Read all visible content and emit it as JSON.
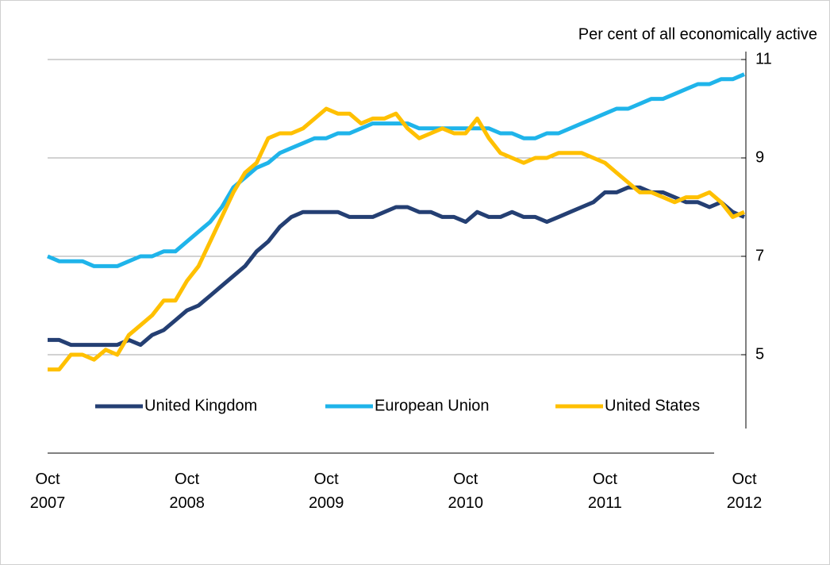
{
  "chart_data": {
    "type": "line",
    "annotation": "Per cent of all economically active",
    "categories": [
      "Oct 2007",
      null,
      null,
      null,
      null,
      null,
      null,
      null,
      null,
      null,
      null,
      null,
      "Oct 2008",
      null,
      null,
      null,
      null,
      null,
      null,
      null,
      null,
      null,
      null,
      null,
      "Oct 2009",
      null,
      null,
      null,
      null,
      null,
      null,
      null,
      null,
      null,
      null,
      null,
      "Oct 2010",
      null,
      null,
      null,
      null,
      null,
      null,
      null,
      null,
      null,
      null,
      null,
      "Oct 2011",
      null,
      null,
      null,
      null,
      null,
      null,
      null,
      null,
      null,
      null,
      null,
      "Oct 2012"
    ],
    "series": [
      {
        "name": "United Kingdom",
        "color": "#243f73",
        "values": [
          5.3,
          5.3,
          5.2,
          5.2,
          5.2,
          5.2,
          5.2,
          5.3,
          5.2,
          5.4,
          5.5,
          5.7,
          5.9,
          6.0,
          6.2,
          6.4,
          6.6,
          6.8,
          7.1,
          7.3,
          7.6,
          7.8,
          7.9,
          7.9,
          7.9,
          7.9,
          7.8,
          7.8,
          7.8,
          7.9,
          8.0,
          8.0,
          7.9,
          7.9,
          7.8,
          7.8,
          7.7,
          7.9,
          7.8,
          7.8,
          7.9,
          7.8,
          7.8,
          7.7,
          7.8,
          7.9,
          8.0,
          8.1,
          8.3,
          8.3,
          8.4,
          8.4,
          8.3,
          8.3,
          8.2,
          8.1,
          8.1,
          8.0,
          8.1,
          7.9,
          7.8
        ]
      },
      {
        "name": "European Union",
        "color": "#1fb4ea",
        "values": [
          7.0,
          6.9,
          6.9,
          6.9,
          6.8,
          6.8,
          6.8,
          6.9,
          7.0,
          7.0,
          7.1,
          7.1,
          7.3,
          7.5,
          7.7,
          8.0,
          8.4,
          8.6,
          8.8,
          8.9,
          9.1,
          9.2,
          9.3,
          9.4,
          9.4,
          9.5,
          9.5,
          9.6,
          9.7,
          9.7,
          9.7,
          9.7,
          9.6,
          9.6,
          9.6,
          9.6,
          9.6,
          9.6,
          9.6,
          9.5,
          9.5,
          9.4,
          9.4,
          9.5,
          9.5,
          9.6,
          9.7,
          9.8,
          9.9,
          10.0,
          10.0,
          10.1,
          10.2,
          10.2,
          10.3,
          10.4,
          10.5,
          10.5,
          10.6,
          10.6,
          10.7
        ]
      },
      {
        "name": "United States",
        "color": "#ffc000",
        "values": [
          4.7,
          4.7,
          5.0,
          5.0,
          4.9,
          5.1,
          5.0,
          5.4,
          5.6,
          5.8,
          6.1,
          6.1,
          6.5,
          6.8,
          7.3,
          7.8,
          8.3,
          8.7,
          8.9,
          9.4,
          9.5,
          9.5,
          9.6,
          9.8,
          10.0,
          9.9,
          9.9,
          9.7,
          9.8,
          9.8,
          9.9,
          9.6,
          9.4,
          9.5,
          9.6,
          9.5,
          9.5,
          9.8,
          9.4,
          9.1,
          9.0,
          8.9,
          9.0,
          9.0,
          9.1,
          9.1,
          9.1,
          9.0,
          8.9,
          8.7,
          8.5,
          8.3,
          8.3,
          8.2,
          8.1,
          8.2,
          8.2,
          8.3,
          8.1,
          7.8,
          7.9
        ]
      }
    ],
    "ylim": [
      3.5,
      11
    ],
    "yticks": [
      5,
      7,
      9,
      11
    ],
    "grid": true,
    "legend": "bottom"
  }
}
